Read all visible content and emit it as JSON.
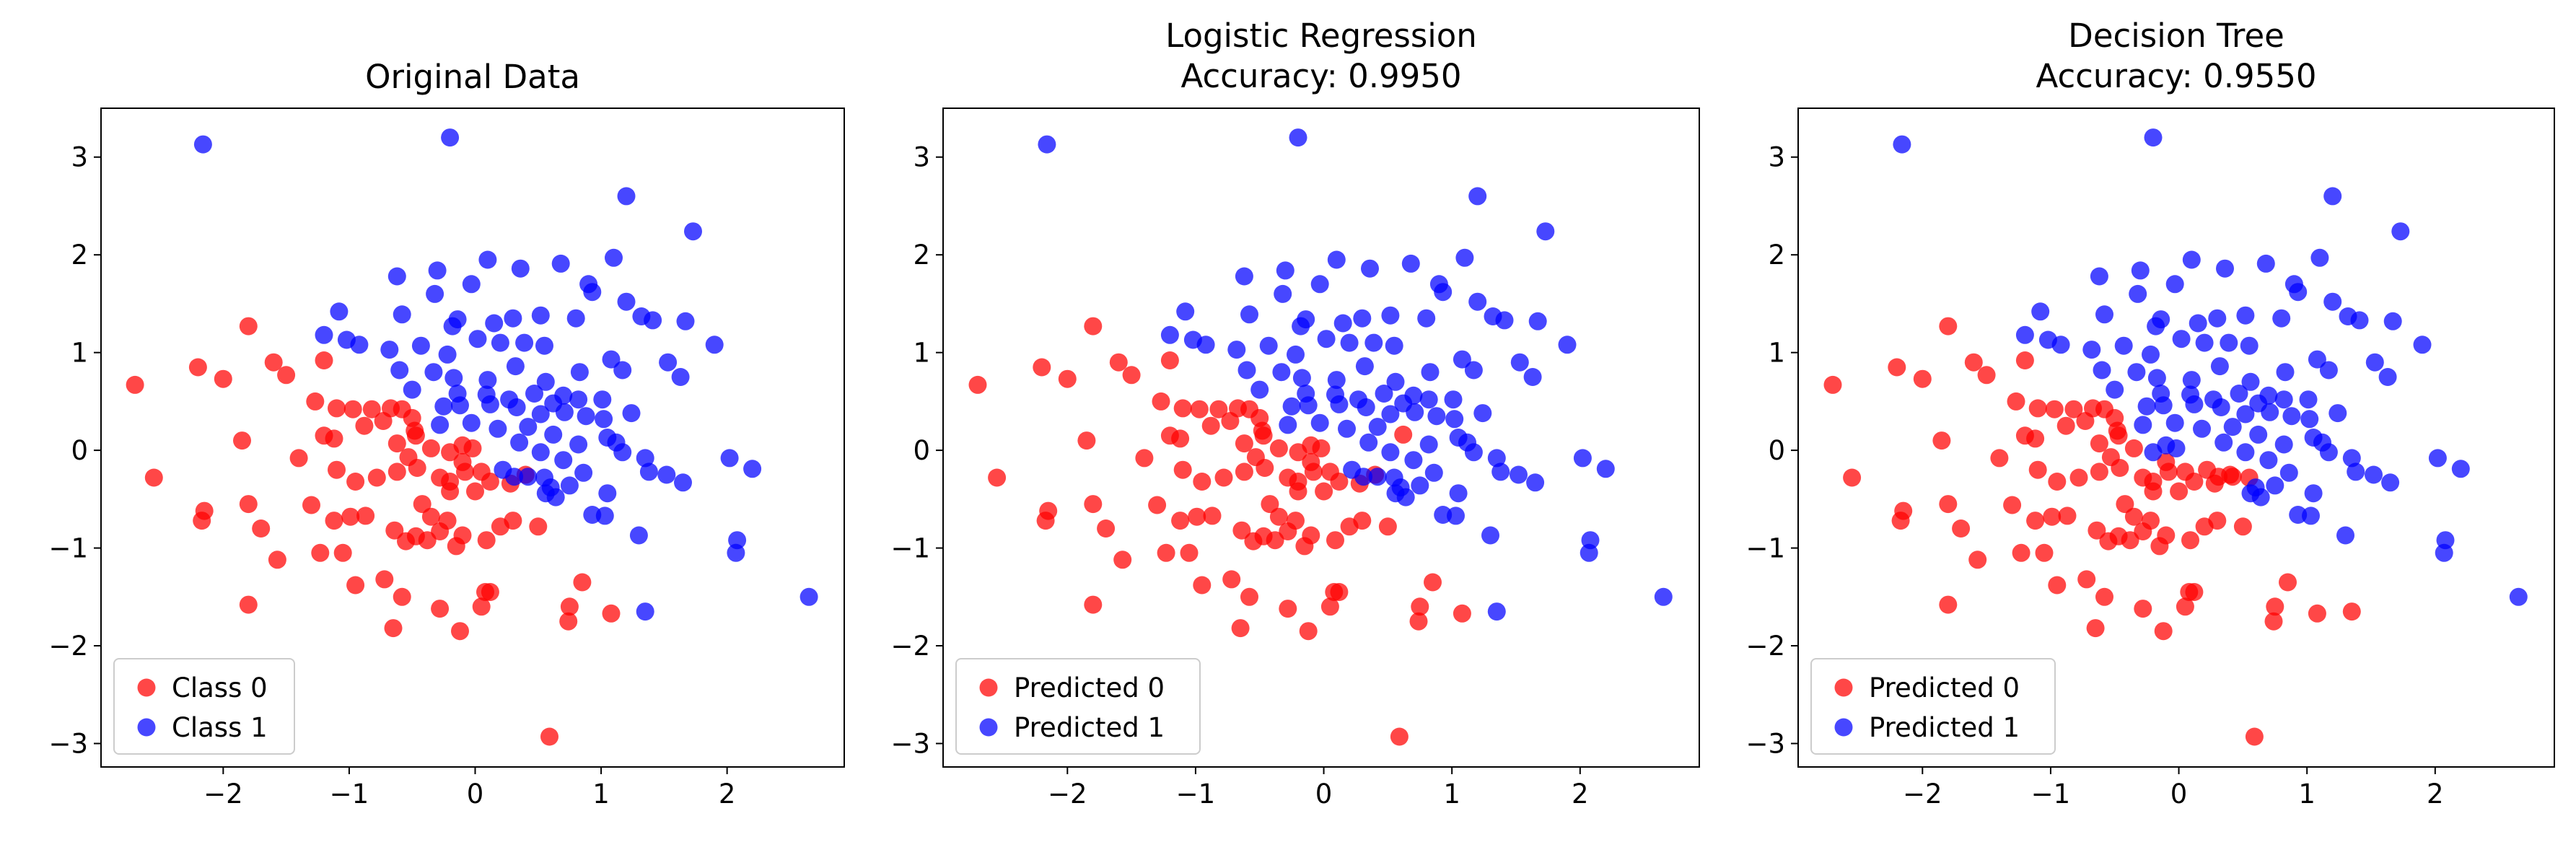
{
  "colors": {
    "class0": "#ff0000",
    "class1": "#0000ff",
    "axes": "#000000",
    "legend_border": "#cccccc",
    "background": "#ffffff"
  },
  "points": {
    "pos": [
      [
        -2.16,
        3.13
      ],
      [
        -0.2,
        3.2
      ],
      [
        1.2,
        2.6
      ],
      [
        1.73,
        2.24
      ],
      [
        0.1,
        1.95
      ],
      [
        0.68,
        1.91
      ],
      [
        1.1,
        1.97
      ],
      [
        0.36,
        1.86
      ],
      [
        -0.3,
        1.84
      ],
      [
        -0.62,
        1.78
      ],
      [
        0.9,
        1.7
      ],
      [
        1.41,
        1.33
      ],
      [
        -0.32,
        1.6
      ],
      [
        -0.03,
        1.7
      ],
      [
        -1.08,
        1.42
      ],
      [
        -0.58,
        1.39
      ],
      [
        -0.14,
        1.34
      ],
      [
        0.3,
        1.35
      ],
      [
        0.52,
        1.38
      ],
      [
        0.93,
        1.62
      ],
      [
        1.2,
        1.52
      ],
      [
        -1.2,
        1.18
      ],
      [
        -1.02,
        1.13
      ],
      [
        -0.92,
        1.08
      ],
      [
        -0.68,
        1.03
      ],
      [
        -0.43,
        1.07
      ],
      [
        -0.22,
        0.98
      ],
      [
        0.02,
        1.14
      ],
      [
        0.2,
        1.1
      ],
      [
        0.39,
        1.1
      ],
      [
        0.55,
        1.07
      ],
      [
        0.8,
        1.35
      ],
      [
        1.32,
        1.37
      ],
      [
        1.67,
        1.32
      ],
      [
        1.9,
        1.08
      ],
      [
        -0.18,
        1.27
      ],
      [
        0.15,
        1.3
      ],
      [
        -0.6,
        0.82
      ],
      [
        -0.33,
        0.8
      ],
      [
        -0.17,
        0.74
      ],
      [
        0.1,
        0.72
      ],
      [
        0.32,
        0.86
      ],
      [
        0.56,
        0.7
      ],
      [
        0.83,
        0.8
      ],
      [
        1.08,
        0.93
      ],
      [
        1.17,
        0.82
      ],
      [
        1.53,
        0.9
      ],
      [
        1.63,
        0.75
      ],
      [
        -0.5,
        0.62
      ],
      [
        -0.14,
        0.58
      ],
      [
        0.09,
        0.57
      ],
      [
        0.27,
        0.52
      ],
      [
        0.47,
        0.58
      ],
      [
        0.62,
        0.48
      ],
      [
        0.7,
        0.56
      ],
      [
        0.82,
        0.52
      ],
      [
        1.01,
        0.52
      ],
      [
        1.24,
        0.38
      ],
      [
        -0.25,
        0.45
      ],
      [
        -0.12,
        0.46
      ],
      [
        0.12,
        0.47
      ],
      [
        0.33,
        0.44
      ],
      [
        0.52,
        0.37
      ],
      [
        0.71,
        0.39
      ],
      [
        0.88,
        0.35
      ],
      [
        1.02,
        0.32
      ],
      [
        -0.28,
        0.26
      ],
      [
        -0.03,
        0.28
      ],
      [
        0.18,
        0.22
      ],
      [
        0.42,
        0.24
      ],
      [
        0.62,
        0.16
      ],
      [
        0.82,
        0.06
      ],
      [
        1.05,
        0.13
      ],
      [
        0.35,
        0.08
      ],
      [
        0.52,
        -0.02
      ],
      [
        0.7,
        -0.1
      ],
      [
        1.12,
        0.08
      ],
      [
        1.17,
        -0.02
      ],
      [
        1.35,
        -0.08
      ],
      [
        1.38,
        -0.22
      ],
      [
        1.52,
        -0.25
      ],
      [
        2.02,
        -0.08
      ],
      [
        2.2,
        -0.19
      ],
      [
        1.65,
        -0.33
      ],
      [
        0.22,
        -0.2
      ],
      [
        0.31,
        -0.27
      ],
      [
        0.42,
        -0.27
      ],
      [
        0.55,
        -0.28
      ],
      [
        0.6,
        -0.38
      ],
      [
        0.64,
        -0.48
      ],
      [
        0.75,
        -0.36
      ],
      [
        0.86,
        -0.23
      ],
      [
        1.05,
        -0.44
      ],
      [
        0.93,
        -0.66
      ],
      [
        1.03,
        -0.67
      ],
      [
        0.56,
        -0.44
      ],
      [
        1.3,
        -0.87
      ],
      [
        2.08,
        -0.92
      ],
      [
        2.07,
        -1.05
      ],
      [
        2.65,
        -1.5
      ],
      [
        1.35,
        -1.65
      ]
    ],
    "neg": [
      [
        -2.7,
        0.67
      ],
      [
        -2.55,
        -0.28
      ],
      [
        -2.2,
        0.85
      ],
      [
        -2.0,
        0.73
      ],
      [
        -1.8,
        1.27
      ],
      [
        -1.6,
        0.9
      ],
      [
        -1.5,
        0.77
      ],
      [
        -1.2,
        0.92
      ],
      [
        -1.27,
        0.5
      ],
      [
        -1.1,
        0.43
      ],
      [
        -0.97,
        0.42
      ],
      [
        -0.82,
        0.42
      ],
      [
        -0.67,
        0.43
      ],
      [
        -0.58,
        0.42
      ],
      [
        -1.2,
        0.15
      ],
      [
        -1.12,
        0.12
      ],
      [
        -0.88,
        0.25
      ],
      [
        -0.73,
        0.3
      ],
      [
        -0.5,
        0.33
      ],
      [
        -0.48,
        0.2
      ],
      [
        -0.62,
        0.07
      ],
      [
        -0.53,
        -0.07
      ],
      [
        -0.47,
        0.15
      ],
      [
        -0.35,
        0.02
      ],
      [
        -0.1,
        0.05
      ],
      [
        -0.02,
        0.02
      ],
      [
        -1.4,
        -0.08
      ],
      [
        -1.85,
        0.1
      ],
      [
        -1.1,
        -0.2
      ],
      [
        -0.95,
        -0.32
      ],
      [
        -0.78,
        -0.28
      ],
      [
        -0.62,
        -0.22
      ],
      [
        -0.46,
        -0.18
      ],
      [
        -0.28,
        -0.28
      ],
      [
        -0.2,
        -0.32
      ],
      [
        -0.1,
        -0.12
      ],
      [
        0.05,
        -0.22
      ],
      [
        0.12,
        -0.32
      ],
      [
        0.28,
        -0.34
      ],
      [
        0.4,
        -0.25
      ],
      [
        -0.2,
        -0.42
      ],
      [
        0.0,
        -0.42
      ],
      [
        -2.15,
        -0.62
      ],
      [
        -2.17,
        -0.72
      ],
      [
        -1.8,
        -0.55
      ],
      [
        -1.7,
        -0.8
      ],
      [
        -1.57,
        -1.12
      ],
      [
        -1.3,
        -0.56
      ],
      [
        -1.12,
        -0.72
      ],
      [
        -0.99,
        -0.68
      ],
      [
        -0.87,
        -0.67
      ],
      [
        -0.64,
        -0.82
      ],
      [
        -0.42,
        -0.55
      ],
      [
        -0.35,
        -0.68
      ],
      [
        -0.22,
        -0.72
      ],
      [
        -0.28,
        -0.83
      ],
      [
        -0.47,
        -0.88
      ],
      [
        -0.55,
        -0.93
      ],
      [
        -0.38,
        -0.92
      ],
      [
        -0.15,
        -0.98
      ],
      [
        0.2,
        -0.78
      ],
      [
        0.3,
        -0.72
      ],
      [
        0.5,
        -0.78
      ],
      [
        0.09,
        -0.92
      ],
      [
        -0.2,
        -0.02
      ],
      [
        -0.08,
        -0.22
      ],
      [
        -1.05,
        -1.05
      ],
      [
        -1.23,
        -1.05
      ],
      [
        -0.95,
        -1.38
      ],
      [
        -0.72,
        -1.32
      ],
      [
        -0.58,
        -1.5
      ],
      [
        -0.65,
        -1.82
      ],
      [
        -0.28,
        -1.62
      ],
      [
        -0.12,
        -1.85
      ],
      [
        0.05,
        -1.6
      ],
      [
        0.12,
        -1.45
      ],
      [
        -1.8,
        -1.58
      ],
      [
        -0.1,
        -0.87
      ],
      [
        0.08,
        -1.45
      ],
      [
        0.85,
        -1.35
      ],
      [
        0.75,
        -1.6
      ],
      [
        0.74,
        -1.75
      ],
      [
        1.08,
        -1.67
      ],
      [
        0.59,
        -2.93
      ]
    ],
    "fp": [],
    "fn": []
  },
  "panels": [
    {
      "title": "Original Data",
      "legend": [
        {
          "label": "Class 0",
          "color": "#ff0000"
        },
        {
          "label": "Class 1",
          "color": "#0000ff"
        }
      ]
    },
    {
      "title": "Logistic Regression\nAccuracy: 0.9950",
      "legend": [
        {
          "label": "Predicted 0",
          "color": "#ff0000"
        },
        {
          "label": "Predicted 1",
          "color": "#0000ff"
        }
      ]
    },
    {
      "title": "Decision Tree\nAccuracy: 0.9550",
      "legend": [
        {
          "label": "Predicted 0",
          "color": "#ff0000"
        },
        {
          "label": "Predicted 1",
          "color": "#0000ff"
        }
      ]
    }
  ],
  "chart_data": [
    {
      "type": "scatter",
      "title": "Original Data",
      "xlim": [
        -2.97,
        2.93
      ],
      "ylim": [
        -3.24,
        3.5
      ],
      "xticks": [
        -2,
        -1,
        0,
        1,
        2
      ],
      "yticks": [
        -3,
        -2,
        -1,
        0,
        1,
        2,
        3
      ],
      "grid": false,
      "legend_position": "lower left",
      "series": [
        {
          "name": "Class 0",
          "color": "#ff0000",
          "source": "neg"
        },
        {
          "name": "Class 1",
          "color": "#0000ff",
          "source": "pos"
        }
      ]
    },
    {
      "type": "scatter",
      "title": "Logistic Regression\nAccuracy: 0.9950",
      "xlim": [
        -2.97,
        2.93
      ],
      "ylim": [
        -3.24,
        3.5
      ],
      "xticks": [
        -2,
        -1,
        0,
        1,
        2
      ],
      "yticks": [
        -3,
        -2,
        -1,
        0,
        1,
        2,
        3
      ],
      "grid": false,
      "legend_position": "lower left",
      "series": [
        {
          "name": "Predicted 0",
          "color": "#ff0000",
          "source": "neg"
        },
        {
          "name": "Predicted 1",
          "color": "#0000ff",
          "source": "pos"
        }
      ],
      "misclassified": [
        {
          "point": [
            0.62,
            0.16
          ],
          "predicted": 0
        }
      ]
    },
    {
      "type": "scatter",
      "title": "Decision Tree\nAccuracy: 0.9550",
      "xlim": [
        -2.97,
        2.93
      ],
      "ylim": [
        -3.24,
        3.5
      ],
      "xticks": [
        -2,
        -1,
        0,
        1,
        2
      ],
      "yticks": [
        -3,
        -2,
        -1,
        0,
        1,
        2,
        3
      ],
      "grid": false,
      "legend_position": "lower left",
      "series": [
        {
          "name": "Predicted 0",
          "color": "#ff0000",
          "source": "neg"
        },
        {
          "name": "Predicted 1",
          "color": "#0000ff",
          "source": "pos"
        }
      ],
      "misclassified": [
        {
          "point": [
            1.05,
            1.15
          ],
          "predicted": 1
        },
        {
          "point": [
            0.22,
            -0.2
          ],
          "predicted": 0
        },
        {
          "point": [
            0.31,
            -0.27
          ],
          "predicted": 0
        },
        {
          "point": [
            0.42,
            -0.27
          ],
          "predicted": 0
        },
        {
          "point": [
            0.55,
            -0.28
          ],
          "predicted": 0
        },
        {
          "point": [
            -0.02,
            0.02
          ],
          "predicted": 1
        },
        {
          "point": [
            -0.1,
            0.05
          ],
          "predicted": 1
        },
        {
          "point": [
            -0.2,
            -0.02
          ],
          "predicted": 1
        },
        {
          "point": [
            1.35,
            -1.65
          ],
          "predicted": 0
        }
      ]
    }
  ]
}
